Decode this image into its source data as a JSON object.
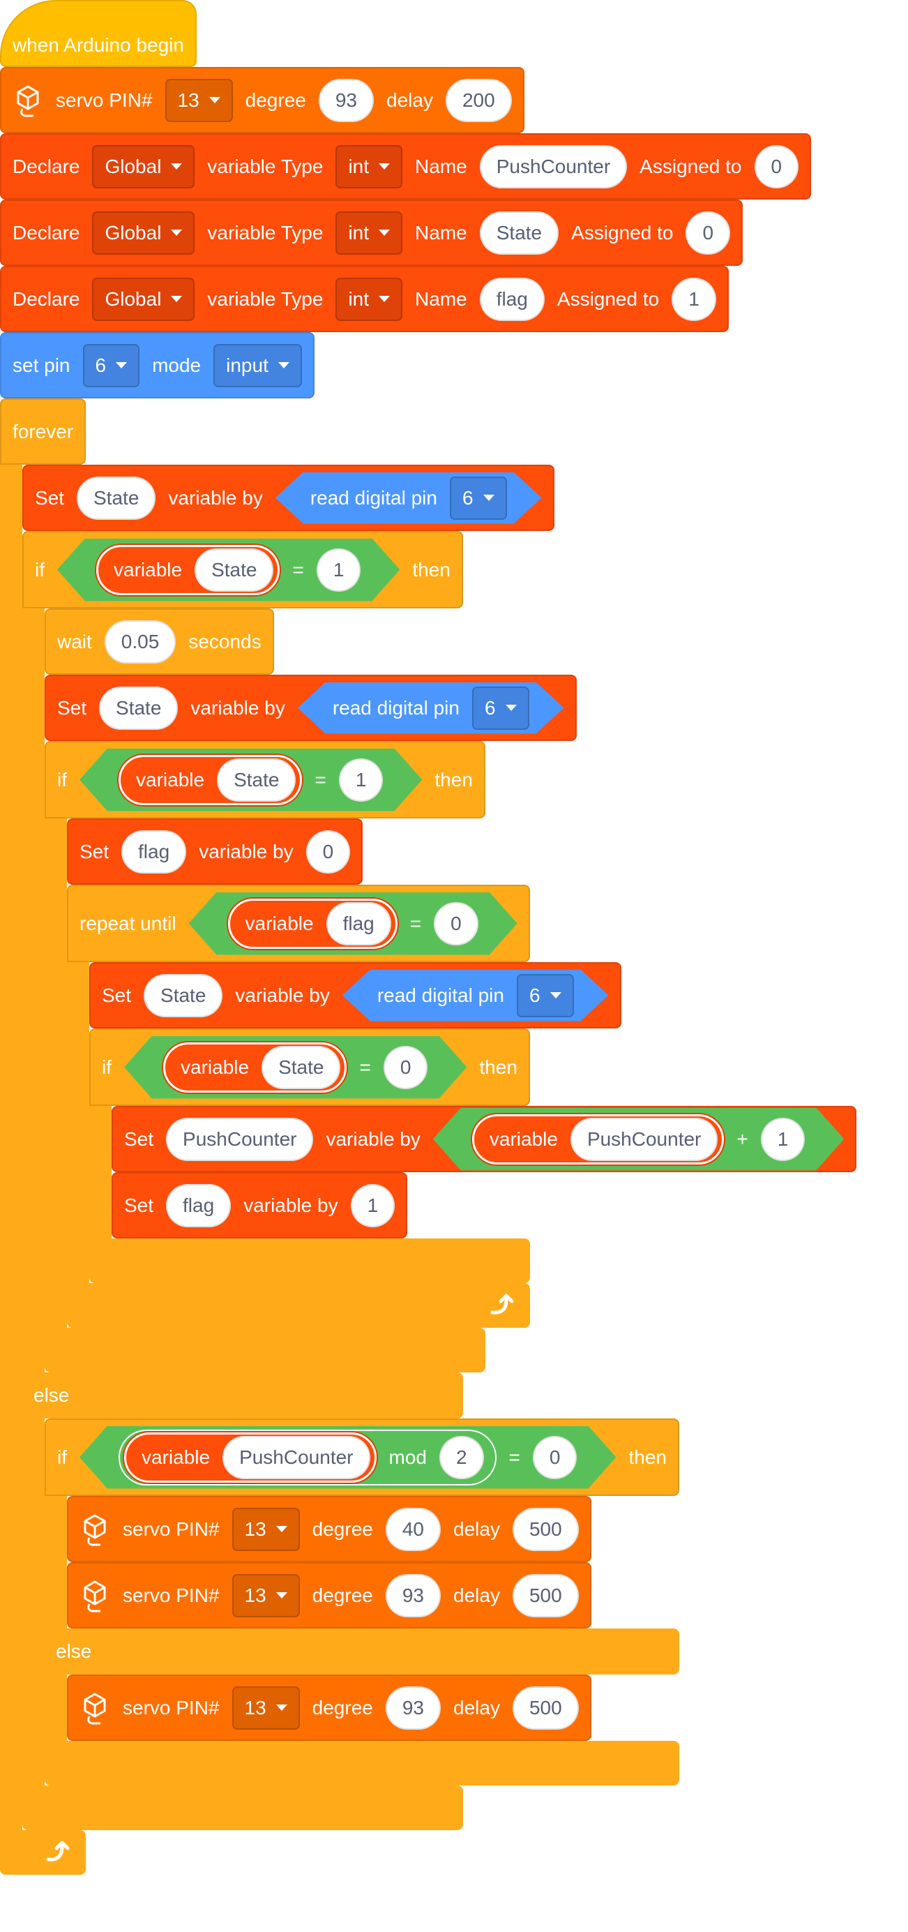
{
  "hat": {
    "label": "when Arduino begin"
  },
  "blocks": [
    {
      "servo": [
        "servo PIN#",
        {
          "dd": 13
        },
        "degree",
        {
          "in": 93
        },
        "delay",
        {
          "in": 200
        }
      ]
    },
    {
      "declare": [
        "Declare",
        {
          "dd": "Global"
        },
        "variable Type",
        {
          "dd": "int"
        },
        "Name",
        {
          "in": "PushCounter"
        },
        "Assigned to",
        {
          "in": 0
        }
      ]
    },
    {
      "declare": [
        "Declare",
        {
          "dd": "Global"
        },
        "variable Type",
        {
          "dd": "int"
        },
        "Name",
        {
          "in": "State"
        },
        "Assigned to",
        {
          "in": 0
        }
      ]
    },
    {
      "declare": [
        "Declare",
        {
          "dd": "Global"
        },
        "variable Type",
        {
          "dd": "int"
        },
        "Name",
        {
          "in": "flag"
        },
        "Assigned to",
        {
          "in": 1
        }
      ]
    },
    {
      "set_pin": [
        "set pin",
        {
          "dd": 6
        },
        "mode",
        {
          "dd": "input"
        }
      ]
    },
    {
      "forever": {
        "head": [
          "forever"
        ],
        "body": [
          {
            "set": [
              "Set",
              {
                "in": "State"
              },
              "variable by",
              {
                "pin": [
                  "read digital pin",
                  {
                    "dd": 6
                  }
                ]
              }
            ]
          },
          {
            "if": {
              "head": [
                "if",
                {
                  "op": [
                    {
                      "var": [
                        "variable",
                        {
                          "in": "State"
                        }
                      ]
                    },
                    "=",
                    {
                      "in": 1
                    }
                  ]
                },
                "then"
              ],
              "body": [
                {
                  "wait": [
                    "wait",
                    {
                      "in": 0.05
                    },
                    "seconds"
                  ]
                },
                {
                  "set": [
                    "Set",
                    {
                      "in": "State"
                    },
                    "variable by",
                    {
                      "pin": [
                        "read digital pin",
                        {
                          "dd": 6
                        }
                      ]
                    }
                  ]
                },
                {
                  "if": {
                    "head": [
                      "if",
                      {
                        "op": [
                          {
                            "var": [
                              "variable",
                              {
                                "in": "State"
                              }
                            ]
                          },
                          "=",
                          {
                            "in": 1
                          }
                        ]
                      },
                      "then"
                    ],
                    "body": [
                      {
                        "set": [
                          "Set",
                          {
                            "in": "flag"
                          },
                          "variable by",
                          {
                            "in": 0
                          }
                        ]
                      },
                      {
                        "repeat_until": {
                          "head": [
                            "repeat until",
                            {
                              "op": [
                                {
                                  "var": [
                                    "variable",
                                    {
                                      "in": "flag"
                                    }
                                  ]
                                },
                                "=",
                                {
                                  "in": 0
                                }
                              ]
                            }
                          ],
                          "body": [
                            {
                              "set": [
                                "Set",
                                {
                                  "in": "State"
                                },
                                "variable by",
                                {
                                  "pin": [
                                    "read digital pin",
                                    {
                                      "dd": 6
                                    }
                                  ]
                                }
                              ]
                            },
                            {
                              "if": {
                                "head": [
                                  "if",
                                  {
                                    "op": [
                                      {
                                        "var": [
                                          "variable",
                                          {
                                            "in": "State"
                                          }
                                        ]
                                      },
                                      "=",
                                      {
                                        "in": 0
                                      }
                                    ]
                                  },
                                  "then"
                                ],
                                "body": [
                                  {
                                    "set": [
                                      "Set",
                                      {
                                        "in": "PushCounter"
                                      },
                                      "variable by",
                                      {
                                        "op": [
                                          {
                                            "var": [
                                              "variable",
                                              {
                                                "in": "PushCounter"
                                              }
                                            ]
                                          },
                                          "+",
                                          {
                                            "in": 1
                                          }
                                        ]
                                      }
                                    ]
                                  },
                                  {
                                    "set": [
                                      "Set",
                                      {
                                        "in": "flag"
                                      },
                                      "variable by",
                                      {
                                        "in": 1
                                      }
                                    ]
                                  }
                                ]
                              }
                            }
                          ]
                        }
                      }
                    ]
                  }
                }
              ],
              "else": "else",
              "else_body": [
                {
                  "if": {
                    "head": [
                      "if",
                      {
                        "op": [
                          {
                            "op": [
                              {
                                "var": [
                                  "variable",
                                  {
                                    "in": "PushCounter"
                                  }
                                ]
                              },
                              "mod",
                              {
                                "in": 2
                              }
                            ]
                          },
                          "=",
                          {
                            "in": 0
                          }
                        ]
                      },
                      "then"
                    ],
                    "body": [
                      {
                        "servo": [
                          "servo PIN#",
                          {
                            "dd": 13
                          },
                          "degree",
                          {
                            "in": 40
                          },
                          "delay",
                          {
                            "in": 500
                          }
                        ]
                      },
                      {
                        "servo": [
                          "servo PIN#",
                          {
                            "dd": 13
                          },
                          "degree",
                          {
                            "in": 93
                          },
                          "delay",
                          {
                            "in": 500
                          }
                        ]
                      }
                    ],
                    "else": "else",
                    "else_body": [
                      {
                        "servo": [
                          "servo PIN#",
                          {
                            "dd": 13
                          },
                          "degree",
                          {
                            "in": 93
                          },
                          "delay",
                          {
                            "in": 500
                          }
                        ]
                      }
                    ]
                  }
                }
              ]
            }
          }
        ]
      }
    }
  ]
}
